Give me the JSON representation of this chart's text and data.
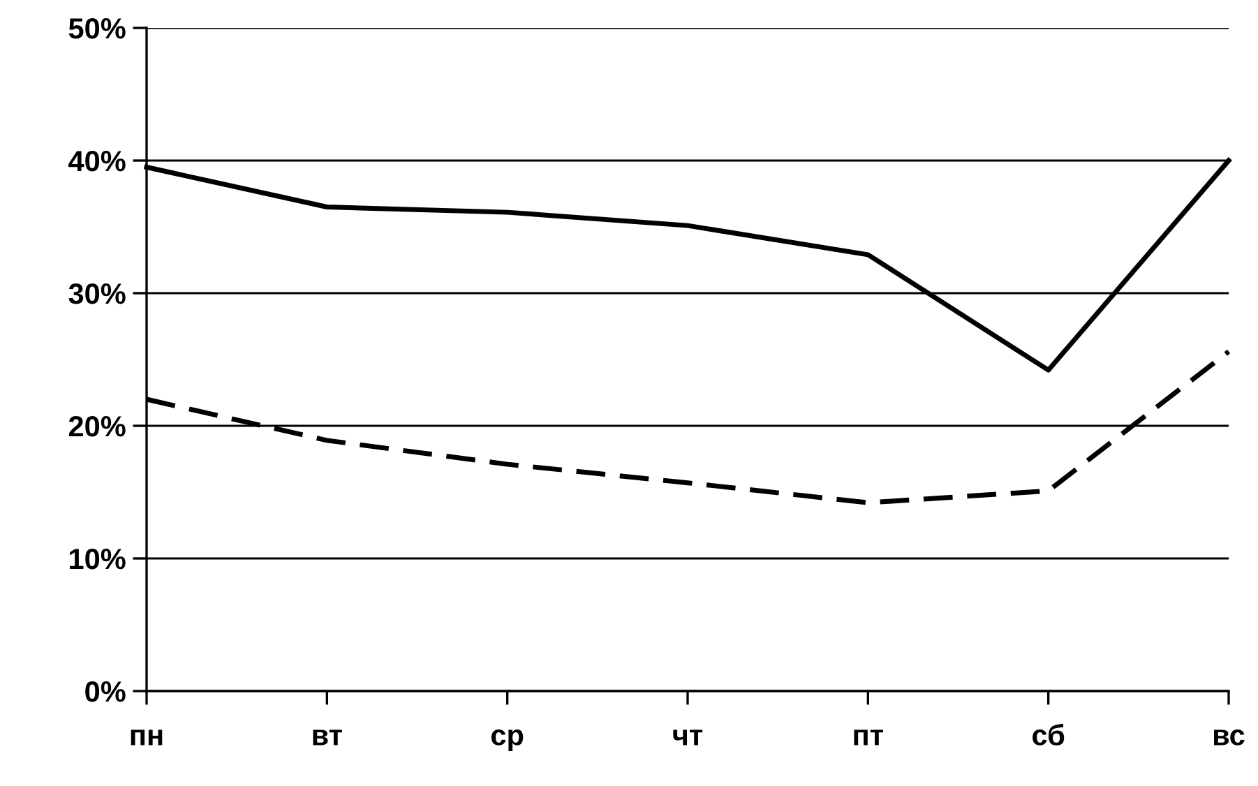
{
  "chart_data": {
    "type": "line",
    "categories": [
      "пн",
      "вт",
      "ср",
      "чт",
      "пт",
      "сб",
      "вс"
    ],
    "series": [
      {
        "color": "#000000",
        "line_style": "solid",
        "values": [
          39.5,
          36.5,
          36.1,
          35.1,
          32.9,
          24.2,
          40.0
        ]
      },
      {
        "color": "#000000",
        "line_style": "dashed",
        "values": [
          22.0,
          18.9,
          17.1,
          15.7,
          14.2,
          15.1,
          25.6
        ]
      }
    ],
    "ylim": [
      0,
      50
    ],
    "yticks": [
      {
        "value": 0,
        "label": "0%"
      },
      {
        "value": 10,
        "label": "10%"
      },
      {
        "value": 20,
        "label": "20%"
      },
      {
        "value": 30,
        "label": "30%"
      },
      {
        "value": 40,
        "label": "40%"
      },
      {
        "value": 50,
        "label": "50%"
      }
    ],
    "grid": "y",
    "legend": false,
    "marker": "none"
  }
}
